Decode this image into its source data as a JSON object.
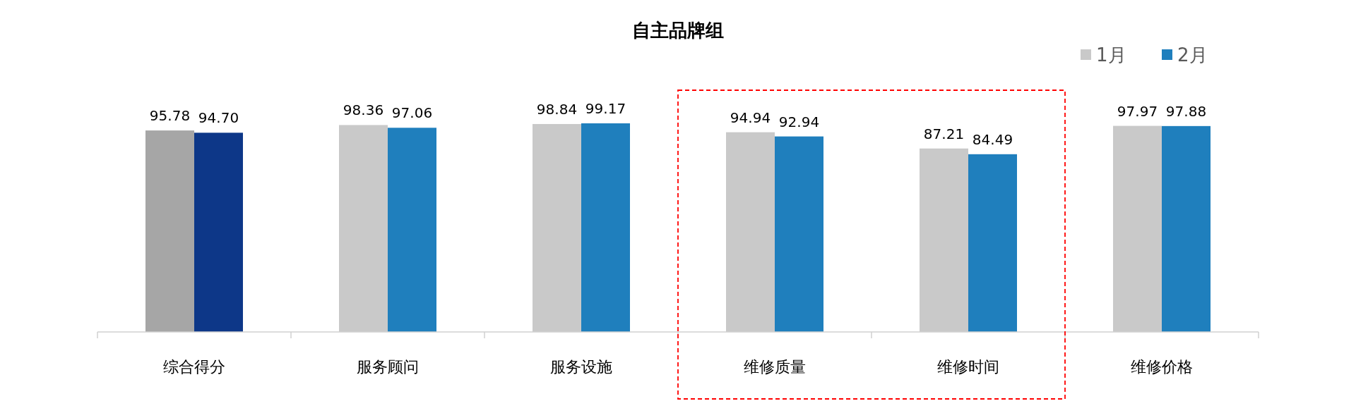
{
  "chart_data": {
    "type": "bar",
    "title": "自主品牌组",
    "categories": [
      "综合得分",
      "服务顾问",
      "服务设施",
      "维修质量",
      "维修时间",
      "维修价格"
    ],
    "series": [
      {
        "name": "1月",
        "color": "#c9c9c9",
        "colors": [
          "#a6a6a6",
          "#c9c9c9",
          "#c9c9c9",
          "#c9c9c9",
          "#c9c9c9",
          "#c9c9c9"
        ],
        "values": [
          95.78,
          98.36,
          98.84,
          94.94,
          87.21,
          97.97
        ],
        "value_labels": [
          "95.78",
          "98.36",
          "98.84",
          "94.94",
          "87.21",
          "97.97"
        ]
      },
      {
        "name": "2月",
        "color": "#1f7fbd",
        "colors": [
          "#0d3788",
          "#1f7fbd",
          "#1f7fbd",
          "#1f7fbd",
          "#1f7fbd",
          "#1f7fbd"
        ],
        "values": [
          94.7,
          97.06,
          99.17,
          92.94,
          84.49,
          97.88
        ],
        "value_labels": [
          "94.70",
          "97.06",
          "99.17",
          "92.94",
          "84.49",
          "97.88"
        ]
      }
    ],
    "legend": "top right"
  }
}
